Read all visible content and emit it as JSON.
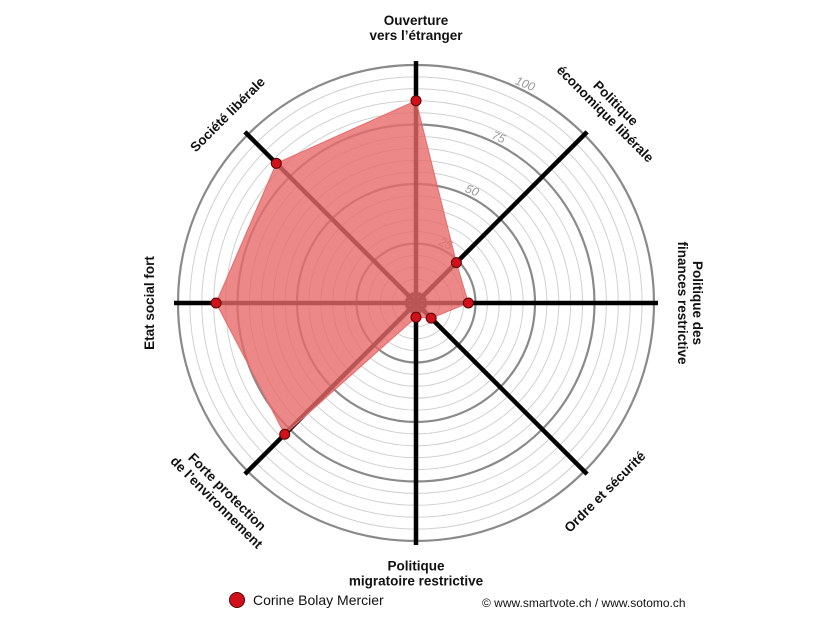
{
  "chart_data": {
    "type": "radar",
    "axes": [
      [
        "Ouverture",
        "vers l’étranger"
      ],
      [
        "Politique",
        "économique libérale"
      ],
      [
        "Politique des",
        "finances restrictive"
      ],
      [
        "Ordre et sécurité"
      ],
      [
        "Politique",
        "migratoire restrictive"
      ],
      [
        "Forte protection",
        "de l’environnement"
      ],
      [
        "Etat social fort"
      ],
      [
        "Société libérale"
      ]
    ],
    "series": [
      {
        "name": "Corine Bolay Mercier",
        "values": [
          85,
          24,
          22,
          9,
          6,
          78,
          84,
          83
        ],
        "color": "#e86a6a",
        "marker_color": "#d0111b"
      }
    ],
    "rlim": [
      0,
      100
    ],
    "ticks": [
      "25",
      "50",
      "75",
      "100"
    ],
    "tick_values": [
      25,
      50,
      75,
      100
    ],
    "grid": true,
    "legend": "bottom-left"
  },
  "legend": {
    "label": "Corine Bolay Mercier"
  },
  "credit": "© www.smartvote.ch / www.sotomo.ch"
}
